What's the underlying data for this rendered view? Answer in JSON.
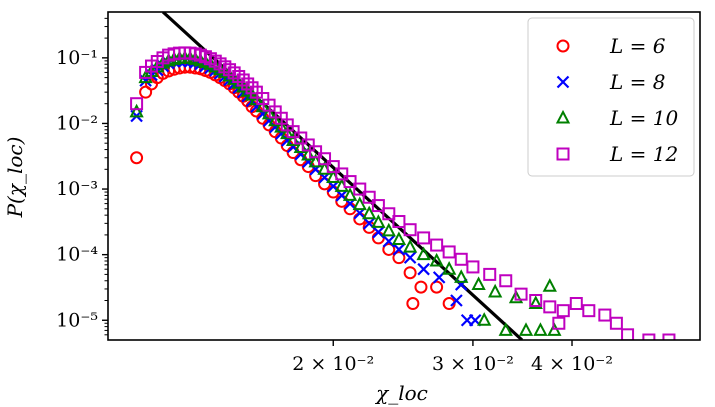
{
  "chart_data": {
    "type": "scatter",
    "title": "",
    "xlabel": "χ_loc",
    "ylabel": "P(χ_loc)",
    "x_scale": "log",
    "y_scale": "log",
    "xlim": [
      0.0104,
      0.058
    ],
    "ylim": [
      5e-06,
      0.5
    ],
    "grid": false,
    "legend_position": "top-right",
    "x_ticks": [
      {
        "value": 0.02,
        "label": "2 × 10⁻²"
      },
      {
        "value": 0.03,
        "label": "3 × 10⁻²"
      },
      {
        "value": 0.04,
        "label": "4 × 10⁻²"
      }
    ],
    "y_ticks": [
      {
        "value": 1e-05,
        "label": "10⁻⁵"
      },
      {
        "value": 0.0001,
        "label": "10⁻⁴"
      },
      {
        "value": 0.001,
        "label": "10⁻³"
      },
      {
        "value": 0.01,
        "label": "10⁻²"
      },
      {
        "value": 0.1,
        "label": "10⁻¹"
      }
    ],
    "fit_line": {
      "name": "power-law fit",
      "color": "#000000",
      "points": [
        [
          0.0122,
          0.5
        ],
        [
          0.0346,
          5e-06
        ]
      ]
    },
    "series": [
      {
        "name": "L = 6",
        "marker": "circle",
        "color": "#ff0000",
        "points": [
          [
            0.0113,
            0.003
          ],
          [
            0.0116,
            0.03
          ],
          [
            0.0118,
            0.04
          ],
          [
            0.012,
            0.05
          ],
          [
            0.0122,
            0.058
          ],
          [
            0.0124,
            0.063
          ],
          [
            0.0126,
            0.067
          ],
          [
            0.0128,
            0.07
          ],
          [
            0.013,
            0.072
          ],
          [
            0.0132,
            0.072
          ],
          [
            0.0134,
            0.07
          ],
          [
            0.0136,
            0.068
          ],
          [
            0.0138,
            0.064
          ],
          [
            0.014,
            0.06
          ],
          [
            0.0142,
            0.055
          ],
          [
            0.0144,
            0.05
          ],
          [
            0.0146,
            0.045
          ],
          [
            0.0148,
            0.04
          ],
          [
            0.015,
            0.035
          ],
          [
            0.0152,
            0.03
          ],
          [
            0.0154,
            0.026
          ],
          [
            0.0156,
            0.022
          ],
          [
            0.0158,
            0.018
          ],
          [
            0.016,
            0.0155
          ],
          [
            0.0163,
            0.012
          ],
          [
            0.0166,
            0.0095
          ],
          [
            0.0169,
            0.0075
          ],
          [
            0.0172,
            0.006
          ],
          [
            0.0175,
            0.0046
          ],
          [
            0.0178,
            0.0036
          ],
          [
            0.0182,
            0.0028
          ],
          [
            0.0186,
            0.0022
          ],
          [
            0.019,
            0.0016
          ],
          [
            0.0195,
            0.0012
          ],
          [
            0.02,
            0.0009
          ],
          [
            0.0205,
            0.00065
          ],
          [
            0.021,
            0.0005
          ],
          [
            0.0216,
            0.00035
          ],
          [
            0.0222,
            0.00026
          ],
          [
            0.0228,
            0.00018
          ],
          [
            0.0235,
            0.00012
          ],
          [
            0.0242,
            9e-05
          ],
          [
            0.025,
            5.3e-05
          ],
          [
            0.0258,
            3.2e-05
          ],
          [
            0.0252,
            1.8e-05
          ],
          [
            0.027,
            3.2e-05
          ],
          [
            0.028,
            1.8e-05
          ]
        ]
      },
      {
        "name": "L = 8",
        "marker": "x",
        "color": "#0000ff",
        "points": [
          [
            0.0113,
            0.013
          ],
          [
            0.0116,
            0.045
          ],
          [
            0.0118,
            0.055
          ],
          [
            0.012,
            0.065
          ],
          [
            0.0122,
            0.075
          ],
          [
            0.0124,
            0.083
          ],
          [
            0.0126,
            0.088
          ],
          [
            0.0128,
            0.09
          ],
          [
            0.013,
            0.09
          ],
          [
            0.0132,
            0.088
          ],
          [
            0.0134,
            0.085
          ],
          [
            0.0136,
            0.08
          ],
          [
            0.0138,
            0.075
          ],
          [
            0.014,
            0.07
          ],
          [
            0.0142,
            0.064
          ],
          [
            0.0144,
            0.058
          ],
          [
            0.0146,
            0.052
          ],
          [
            0.0148,
            0.046
          ],
          [
            0.015,
            0.04
          ],
          [
            0.0152,
            0.035
          ],
          [
            0.0154,
            0.03
          ],
          [
            0.0156,
            0.026
          ],
          [
            0.0158,
            0.022
          ],
          [
            0.016,
            0.018
          ],
          [
            0.0163,
            0.014
          ],
          [
            0.0166,
            0.011
          ],
          [
            0.0169,
            0.0088
          ],
          [
            0.0172,
            0.007
          ],
          [
            0.0175,
            0.0055
          ],
          [
            0.0178,
            0.0044
          ],
          [
            0.0182,
            0.0034
          ],
          [
            0.0186,
            0.0026
          ],
          [
            0.019,
            0.002
          ],
          [
            0.0195,
            0.0015
          ],
          [
            0.02,
            0.0011
          ],
          [
            0.0205,
            0.0008
          ],
          [
            0.021,
            0.0006
          ],
          [
            0.0216,
            0.00043
          ],
          [
            0.0222,
            0.0003
          ],
          [
            0.0228,
            0.00022
          ],
          [
            0.0235,
            0.00016
          ],
          [
            0.0242,
            0.00012
          ],
          [
            0.025,
            9e-05
          ],
          [
            0.026,
            6e-05
          ],
          [
            0.0272,
            4.5e-05
          ],
          [
            0.029,
            3.5e-05
          ],
          [
            0.0286,
            2e-05
          ],
          [
            0.0295,
            1e-05
          ],
          [
            0.0302,
            1e-05
          ]
        ]
      },
      {
        "name": "L = 10",
        "marker": "triangle",
        "color": "#008000",
        "points": [
          [
            0.0113,
            0.015
          ],
          [
            0.0116,
            0.05
          ],
          [
            0.0118,
            0.062
          ],
          [
            0.012,
            0.073
          ],
          [
            0.0122,
            0.083
          ],
          [
            0.0124,
            0.09
          ],
          [
            0.0126,
            0.095
          ],
          [
            0.0128,
            0.098
          ],
          [
            0.013,
            0.099
          ],
          [
            0.0132,
            0.098
          ],
          [
            0.0134,
            0.095
          ],
          [
            0.0136,
            0.09
          ],
          [
            0.0138,
            0.085
          ],
          [
            0.014,
            0.08
          ],
          [
            0.0142,
            0.073
          ],
          [
            0.0144,
            0.066
          ],
          [
            0.0146,
            0.06
          ],
          [
            0.0148,
            0.053
          ],
          [
            0.015,
            0.047
          ],
          [
            0.0152,
            0.041
          ],
          [
            0.0154,
            0.036
          ],
          [
            0.0156,
            0.031
          ],
          [
            0.0158,
            0.027
          ],
          [
            0.016,
            0.023
          ],
          [
            0.0163,
            0.018
          ],
          [
            0.0166,
            0.014
          ],
          [
            0.0169,
            0.011
          ],
          [
            0.0172,
            0.0088
          ],
          [
            0.0175,
            0.007
          ],
          [
            0.0178,
            0.0055
          ],
          [
            0.0182,
            0.0043
          ],
          [
            0.0186,
            0.0033
          ],
          [
            0.019,
            0.0026
          ],
          [
            0.0195,
            0.002
          ],
          [
            0.02,
            0.0015
          ],
          [
            0.0205,
            0.0011
          ],
          [
            0.021,
            0.0008
          ],
          [
            0.0216,
            0.00058
          ],
          [
            0.0222,
            0.00042
          ],
          [
            0.0228,
            0.00031
          ],
          [
            0.0235,
            0.00023
          ],
          [
            0.0242,
            0.00017
          ],
          [
            0.025,
            0.00013
          ],
          [
            0.026,
            0.0001
          ],
          [
            0.027,
            8e-05
          ],
          [
            0.028,
            6e-05
          ],
          [
            0.029,
            4.5e-05
          ],
          [
            0.0305,
            3.5e-05
          ],
          [
            0.032,
            2.7e-05
          ],
          [
            0.034,
            2.2e-05
          ],
          [
            0.036,
            1.8e-05
          ],
          [
            0.0375,
            3.3e-05
          ],
          [
            0.031,
            1e-05
          ],
          [
            0.033,
            7e-06
          ],
          [
            0.035,
            7e-06
          ],
          [
            0.0365,
            7e-06
          ],
          [
            0.038,
            7e-06
          ]
        ]
      },
      {
        "name": "L = 12",
        "marker": "square",
        "color": "#bf00bf",
        "points": [
          [
            0.0113,
            0.02
          ],
          [
            0.0116,
            0.06
          ],
          [
            0.0118,
            0.075
          ],
          [
            0.012,
            0.088
          ],
          [
            0.0122,
            0.1
          ],
          [
            0.0124,
            0.11
          ],
          [
            0.0126,
            0.115
          ],
          [
            0.0128,
            0.118
          ],
          [
            0.013,
            0.119
          ],
          [
            0.0132,
            0.118
          ],
          [
            0.0134,
            0.115
          ],
          [
            0.0136,
            0.11
          ],
          [
            0.0138,
            0.104
          ],
          [
            0.014,
            0.097
          ],
          [
            0.0142,
            0.089
          ],
          [
            0.0144,
            0.081
          ],
          [
            0.0146,
            0.073
          ],
          [
            0.0148,
            0.066
          ],
          [
            0.015,
            0.059
          ],
          [
            0.0152,
            0.052
          ],
          [
            0.0154,
            0.046
          ],
          [
            0.0156,
            0.04
          ],
          [
            0.0158,
            0.035
          ],
          [
            0.016,
            0.03
          ],
          [
            0.0163,
            0.024
          ],
          [
            0.0166,
            0.019
          ],
          [
            0.0169,
            0.015
          ],
          [
            0.0172,
            0.012
          ],
          [
            0.0175,
            0.0095
          ],
          [
            0.0178,
            0.0075
          ],
          [
            0.0182,
            0.006
          ],
          [
            0.0186,
            0.0047
          ],
          [
            0.019,
            0.0037
          ],
          [
            0.0195,
            0.0029
          ],
          [
            0.02,
            0.0022
          ],
          [
            0.0205,
            0.0017
          ],
          [
            0.021,
            0.0013
          ],
          [
            0.0216,
            0.001
          ],
          [
            0.0222,
            0.00075
          ],
          [
            0.0228,
            0.00056
          ],
          [
            0.0235,
            0.00042
          ],
          [
            0.0242,
            0.00032
          ],
          [
            0.025,
            0.00024
          ],
          [
            0.026,
            0.00018
          ],
          [
            0.027,
            0.00014
          ],
          [
            0.028,
            0.00011
          ],
          [
            0.029,
            8.5e-05
          ],
          [
            0.03,
            6.5e-05
          ],
          [
            0.0315,
            5e-05
          ],
          [
            0.033,
            4e-05
          ],
          [
            0.0345,
            2.5e-05
          ],
          [
            0.036,
            2e-05
          ],
          [
            0.0375,
            1.6e-05
          ],
          [
            0.039,
            1.4e-05
          ],
          [
            0.0405,
            1.8e-05
          ],
          [
            0.042,
            1.4e-05
          ],
          [
            0.044,
            1.2e-05
          ],
          [
            0.0455,
            9e-06
          ],
          [
            0.0385,
            9e-06
          ],
          [
            0.047,
            6e-06
          ],
          [
            0.05,
            5e-06
          ],
          [
            0.053,
            5e-06
          ]
        ]
      }
    ]
  }
}
